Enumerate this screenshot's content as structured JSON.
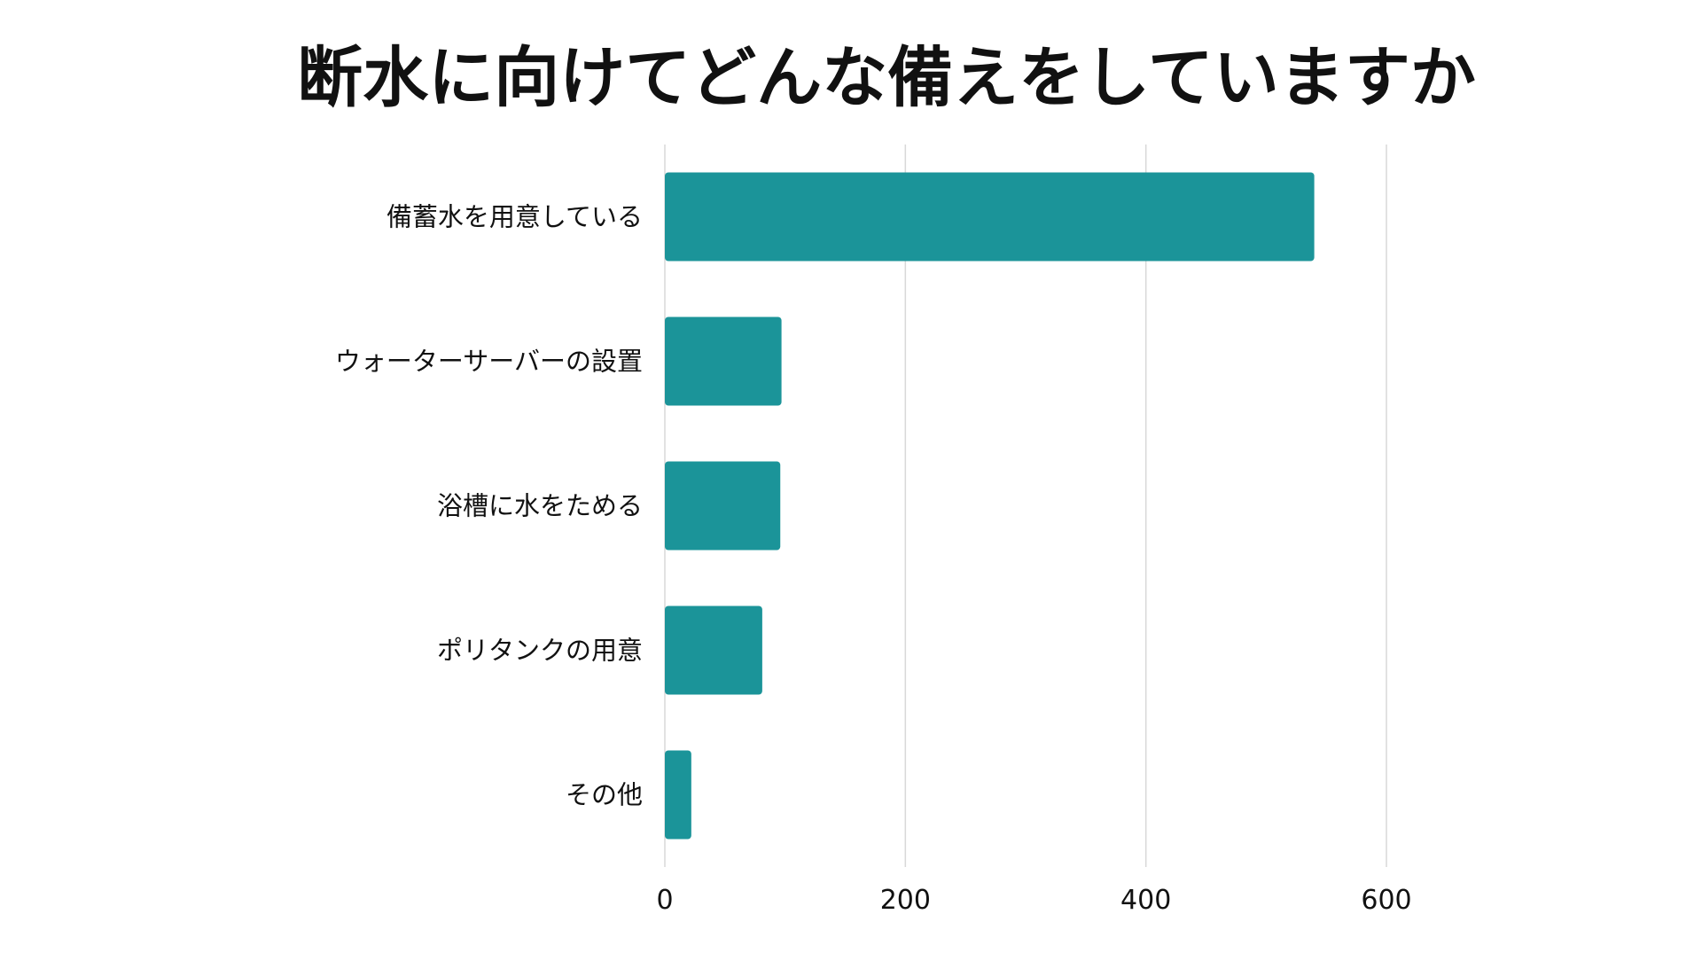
{
  "chart_data": {
    "type": "bar",
    "orientation": "horizontal",
    "title": "断水に向けてどんな備えをしていますか",
    "xlabel": "",
    "ylabel": "",
    "categories": [
      "備蓄水を用意している",
      "ウォーターサーバーの設置",
      "浴槽に水をためる",
      "ポリタンクの用意",
      "その他"
    ],
    "values": [
      540,
      97,
      96,
      81,
      22
    ],
    "xlim": [
      0,
      600
    ],
    "xticks": [
      "0",
      "200",
      "400",
      "600"
    ],
    "grid": true,
    "legend": "none",
    "colors": {
      "bar": "#1b9499",
      "grid": "#d8d8d8",
      "text": "#111111"
    }
  }
}
